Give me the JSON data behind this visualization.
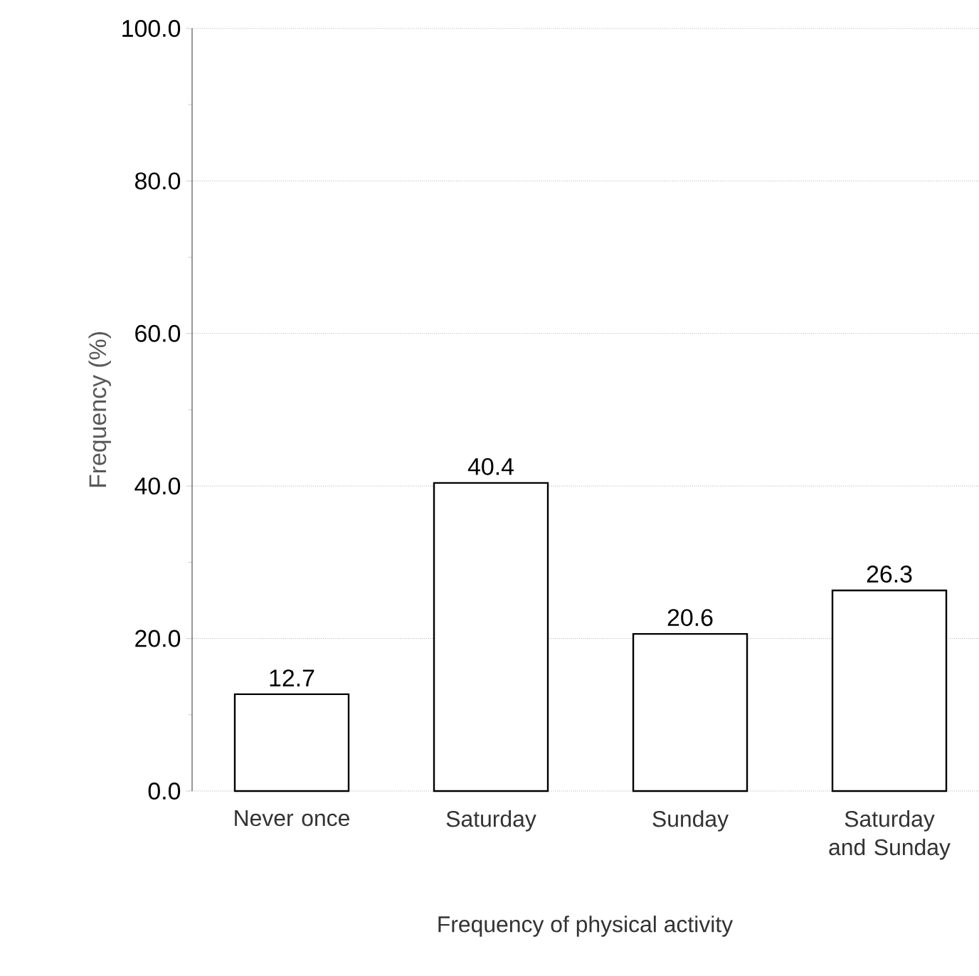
{
  "chart_data": {
    "type": "bar",
    "xlabel": "Frequency of physical activity",
    "ylabel": "Frequency (%)",
    "categories": [
      "Never once",
      "Saturday",
      "Sunday",
      "Saturday and Sunday"
    ],
    "values": [
      12.7,
      40.4,
      20.6,
      26.3
    ],
    "value_labels": [
      "12.7",
      "40.4",
      "20.6",
      "26.3"
    ],
    "color": "#ffffff",
    "ylim": [
      0,
      100
    ],
    "yticks": [
      {
        "value": 0,
        "label": "0.0"
      },
      {
        "value": 20,
        "label": "20.0"
      },
      {
        "value": 40,
        "label": "40.0"
      },
      {
        "value": 60,
        "label": "60.0"
      },
      {
        "value": 80,
        "label": "80.0"
      },
      {
        "value": 100,
        "label": "100.0"
      }
    ],
    "grid": "y"
  }
}
